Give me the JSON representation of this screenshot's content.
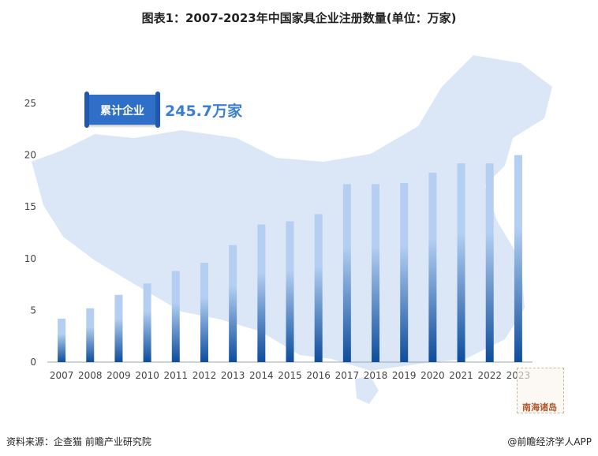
{
  "title": "图表1：2007-2023年中国家具企业注册数量(单位：万家)",
  "badge": {
    "label": "累计企业",
    "total": "245.7万家"
  },
  "map_inset_label": "南海诸岛",
  "source": "资料来源：企查猫 前瞻产业研究院",
  "brand": "@前瞻经济学人APP",
  "colors": {
    "bar_top": "#b4cff2",
    "bar_bottom": "#0d4d9c",
    "map": "#dbe7f6",
    "badge": "#2f6fc8"
  },
  "chart_data": {
    "type": "bar",
    "title": "图表1：2007-2023年中国家具企业注册数量(单位：万家)",
    "categories": [
      "2007",
      "2008",
      "2009",
      "2010",
      "2011",
      "2012",
      "2013",
      "2014",
      "2015",
      "2016",
      "2017",
      "2018",
      "2019",
      "2020",
      "2021",
      "2022",
      "2023"
    ],
    "values": [
      4.2,
      5.2,
      6.5,
      7.6,
      8.8,
      9.6,
      11.3,
      13.3,
      13.6,
      14.3,
      17.2,
      17.2,
      17.3,
      18.3,
      19.2,
      19.2,
      20.0
    ],
    "yticks": [
      0,
      5,
      10,
      15,
      20,
      25
    ],
    "ylim": [
      0,
      25
    ],
    "xlabel": "",
    "ylabel": "",
    "grid": false,
    "legend": "none"
  }
}
